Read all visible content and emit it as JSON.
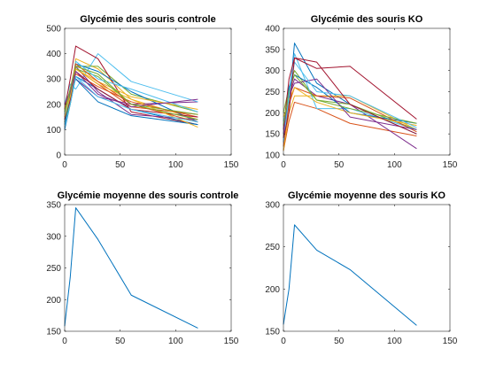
{
  "chart_data": [
    {
      "type": "line",
      "title": "Glycémie des souris controle",
      "xlim": [
        0,
        150
      ],
      "ylim": [
        0,
        500
      ],
      "xticks": [
        0,
        50,
        100,
        150
      ],
      "yticks": [
        0,
        100,
        200,
        300,
        400,
        500
      ],
      "x": [
        0,
        5,
        10,
        30,
        60,
        120
      ],
      "series": [
        {
          "color": "#0072BD",
          "values": [
            100,
            200,
            310,
            260,
            180,
            120
          ]
        },
        {
          "color": "#D95319",
          "values": [
            150,
            240,
            340,
            280,
            190,
            160
          ]
        },
        {
          "color": "#EDB120",
          "values": [
            130,
            210,
            380,
            340,
            220,
            140
          ]
        },
        {
          "color": "#7E2F8E",
          "values": [
            160,
            250,
            300,
            230,
            200,
            210
          ]
        },
        {
          "color": "#77AC30",
          "values": [
            120,
            230,
            350,
            350,
            240,
            170
          ]
        },
        {
          "color": "#4DBEEE",
          "values": [
            200,
            280,
            260,
            400,
            290,
            210
          ]
        },
        {
          "color": "#A2142F",
          "values": [
            180,
            300,
            430,
            380,
            170,
            120
          ]
        },
        {
          "color": "#0072BD",
          "values": [
            140,
            220,
            360,
            330,
            250,
            130
          ]
        },
        {
          "color": "#D95319",
          "values": [
            110,
            260,
            320,
            270,
            210,
            150
          ]
        },
        {
          "color": "#EDB120",
          "values": [
            170,
            240,
            340,
            290,
            230,
            180
          ]
        },
        {
          "color": "#7E2F8E",
          "values": [
            150,
            210,
            350,
            250,
            160,
            140
          ]
        },
        {
          "color": "#77AC30",
          "values": [
            130,
            200,
            340,
            310,
            200,
            160
          ]
        },
        {
          "color": "#4DBEEE",
          "values": [
            160,
            230,
            370,
            300,
            260,
            170
          ]
        },
        {
          "color": "#A2142F",
          "values": [
            140,
            220,
            330,
            260,
            180,
            150
          ]
        },
        {
          "color": "#0072BD",
          "values": [
            120,
            240,
            300,
            210,
            155,
            120
          ]
        },
        {
          "color": "#D95319",
          "values": [
            180,
            260,
            360,
            290,
            200,
            130
          ]
        },
        {
          "color": "#EDB120",
          "values": [
            150,
            230,
            340,
            280,
            220,
            110
          ]
        },
        {
          "color": "#7E2F8E",
          "values": [
            200,
            250,
            330,
            240,
            190,
            220
          ]
        },
        {
          "color": "#77AC30",
          "values": [
            170,
            260,
            350,
            320,
            200,
            140
          ]
        },
        {
          "color": "#4DBEEE",
          "values": [
            110,
            200,
            310,
            230,
            180,
            130
          ]
        }
      ]
    },
    {
      "type": "line",
      "title": "Glycémie des souris KO",
      "xlim": [
        0,
        150
      ],
      "ylim": [
        100,
        400
      ],
      "xticks": [
        0,
        50,
        100,
        150
      ],
      "yticks": [
        100,
        150,
        200,
        250,
        300,
        350,
        400
      ],
      "x": [
        0,
        5,
        10,
        30,
        60,
        120
      ],
      "series": [
        {
          "color": "#0072BD",
          "values": [
            150,
            220,
            365,
            270,
            220,
            150
          ]
        },
        {
          "color": "#D95319",
          "values": [
            110,
            180,
            225,
            210,
            175,
            145
          ]
        },
        {
          "color": "#EDB120",
          "values": [
            110,
            200,
            240,
            240,
            240,
            160
          ]
        },
        {
          "color": "#7E2F8E",
          "values": [
            130,
            240,
            280,
            240,
            220,
            115
          ]
        },
        {
          "color": "#77AC30",
          "values": [
            200,
            260,
            300,
            230,
            220,
            160
          ]
        },
        {
          "color": "#4DBEEE",
          "values": [
            180,
            250,
            340,
            210,
            210,
            160
          ]
        },
        {
          "color": "#A2142F",
          "values": [
            160,
            280,
            330,
            305,
            310,
            185
          ]
        },
        {
          "color": "#0072BD",
          "values": [
            140,
            260,
            290,
            260,
            200,
            175
          ]
        },
        {
          "color": "#D95319",
          "values": [
            120,
            220,
            260,
            240,
            235,
            155
          ]
        },
        {
          "color": "#EDB120",
          "values": [
            190,
            230,
            260,
            225,
            200,
            170
          ]
        },
        {
          "color": "#7E2F8E",
          "values": [
            150,
            240,
            270,
            280,
            190,
            160
          ]
        },
        {
          "color": "#77AC30",
          "values": [
            170,
            250,
            290,
            230,
            210,
            175
          ]
        },
        {
          "color": "#4DBEEE",
          "values": [
            130,
            240,
            320,
            250,
            240,
            165
          ]
        },
        {
          "color": "#A2142F",
          "values": [
            140,
            200,
            330,
            320,
            220,
            150
          ]
        }
      ]
    },
    {
      "type": "line",
      "title": "Glycémie moyenne des souris controle",
      "xlim": [
        0,
        150
      ],
      "ylim": [
        150,
        350
      ],
      "xticks": [
        0,
        50,
        100,
        150
      ],
      "yticks": [
        150,
        200,
        250,
        300,
        350
      ],
      "x": [
        0,
        5,
        10,
        30,
        60,
        120
      ],
      "series": [
        {
          "color": "#0072BD",
          "values": [
            158,
            235,
            345,
            295,
            207,
            155
          ]
        }
      ]
    },
    {
      "type": "line",
      "title": "Glycémie moyenne des souris KO",
      "xlim": [
        0,
        150
      ],
      "ylim": [
        150,
        300
      ],
      "xticks": [
        0,
        50,
        100,
        150
      ],
      "yticks": [
        150,
        200,
        250,
        300
      ],
      "x": [
        0,
        5,
        10,
        30,
        60,
        120
      ],
      "series": [
        {
          "color": "#0072BD",
          "values": [
            158,
            200,
            276,
            246,
            223,
            157
          ]
        }
      ]
    }
  ]
}
